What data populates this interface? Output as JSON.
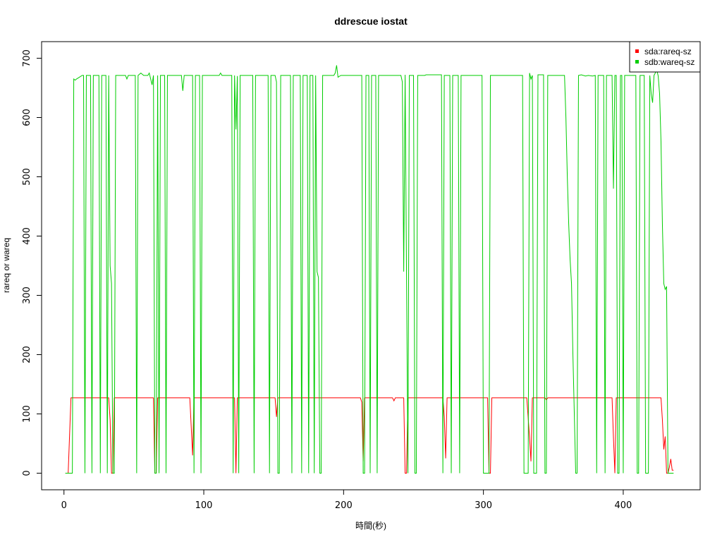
{
  "chart_data": {
    "type": "line",
    "title": "ddrescue iostat",
    "xlabel": "時間(秒)",
    "ylabel": "rareq or wareq",
    "xlim": [
      -16,
      455
    ],
    "ylim": [
      -28,
      728
    ],
    "xticks": [
      0,
      100,
      200,
      300,
      400
    ],
    "yticks": [
      0,
      100,
      200,
      300,
      400,
      500,
      600,
      700
    ],
    "legend": "top-right",
    "grid": false,
    "series": [
      {
        "name": "sda:rareq-sz",
        "color": "#ff0000",
        "points": [
          [
            1,
            0
          ],
          [
            3,
            0
          ],
          [
            5,
            127
          ],
          [
            32,
            127
          ],
          [
            33,
            90
          ],
          [
            34,
            0
          ],
          [
            35,
            0
          ],
          [
            36,
            127
          ],
          [
            64,
            127
          ],
          [
            65,
            0
          ],
          [
            66,
            0
          ],
          [
            67,
            127
          ],
          [
            90,
            127
          ],
          [
            92,
            30
          ],
          [
            93,
            127
          ],
          [
            122,
            127
          ],
          [
            123,
            0
          ],
          [
            124,
            127
          ],
          [
            151,
            127
          ],
          [
            152,
            95
          ],
          [
            153,
            127
          ],
          [
            212,
            127
          ],
          [
            213,
            120
          ],
          [
            214,
            20
          ],
          [
            215,
            127
          ],
          [
            235,
            127
          ],
          [
            236,
            122
          ],
          [
            237,
            127
          ],
          [
            243,
            127
          ],
          [
            244,
            0
          ],
          [
            245,
            0
          ],
          [
            246,
            127
          ],
          [
            271,
            127
          ],
          [
            272,
            95
          ],
          [
            273,
            25
          ],
          [
            274,
            127
          ],
          [
            303,
            127
          ],
          [
            304,
            0
          ],
          [
            305,
            0
          ],
          [
            306,
            127
          ],
          [
            331,
            127
          ],
          [
            333,
            60
          ],
          [
            334,
            20
          ],
          [
            335,
            127
          ],
          [
            344,
            127
          ],
          [
            345,
            124
          ],
          [
            346,
            127
          ],
          [
            392,
            127
          ],
          [
            393,
            60
          ],
          [
            394,
            0
          ],
          [
            395,
            127
          ],
          [
            427,
            127
          ],
          [
            428,
            90
          ],
          [
            429,
            40
          ],
          [
            430,
            62
          ],
          [
            431,
            0
          ],
          [
            432,
            0
          ],
          [
            433,
            10
          ],
          [
            434,
            24
          ],
          [
            435,
            5
          ],
          [
            436,
            5
          ]
        ]
      },
      {
        "name": "sdb:wareq-sz",
        "color": "#00cd00",
        "points": [
          [
            1,
            0
          ],
          [
            3,
            0
          ],
          [
            4,
            0
          ],
          [
            5,
            0
          ],
          [
            6,
            0
          ],
          [
            7,
            665
          ],
          [
            8,
            663
          ],
          [
            9,
            665
          ],
          [
            11,
            668
          ],
          [
            13,
            671
          ],
          [
            14,
            671
          ],
          [
            15,
            0
          ],
          [
            16,
            671
          ],
          [
            19,
            671
          ],
          [
            20,
            0
          ],
          [
            21,
            671
          ],
          [
            25,
            671
          ],
          [
            26,
            0
          ],
          [
            27,
            671
          ],
          [
            30,
            671
          ],
          [
            31,
            0
          ],
          [
            32,
            671
          ],
          [
            33,
            350
          ],
          [
            34,
            320
          ],
          [
            35,
            0
          ],
          [
            36,
            0
          ],
          [
            37,
            671
          ],
          [
            44,
            671
          ],
          [
            45,
            665
          ],
          [
            46,
            671
          ],
          [
            51,
            671
          ],
          [
            52,
            0
          ],
          [
            53,
            671
          ],
          [
            55,
            675
          ],
          [
            57,
            671
          ],
          [
            60,
            671
          ],
          [
            61,
            675
          ],
          [
            62,
            665
          ],
          [
            63,
            655
          ],
          [
            64,
            671
          ],
          [
            65,
            0
          ],
          [
            66,
            0
          ],
          [
            67,
            671
          ],
          [
            68,
            0
          ],
          [
            69,
            671
          ],
          [
            72,
            671
          ],
          [
            73,
            0
          ],
          [
            74,
            671
          ],
          [
            84,
            671
          ],
          [
            85,
            645
          ],
          [
            86,
            671
          ],
          [
            92,
            671
          ],
          [
            93,
            0
          ],
          [
            94,
            671
          ],
          [
            97,
            671
          ],
          [
            98,
            0
          ],
          [
            99,
            671
          ],
          [
            110,
            671
          ],
          [
            111,
            671
          ],
          [
            112,
            675
          ],
          [
            113,
            671
          ],
          [
            120,
            671
          ],
          [
            121,
            0
          ],
          [
            122,
            671
          ],
          [
            123,
            580
          ],
          [
            124,
            670
          ],
          [
            125,
            0
          ],
          [
            126,
            671
          ],
          [
            135,
            671
          ],
          [
            136,
            0
          ],
          [
            137,
            671
          ],
          [
            146,
            671
          ],
          [
            147,
            0
          ],
          [
            148,
            671
          ],
          [
            151,
            671
          ],
          [
            152,
            660
          ],
          [
            153,
            0
          ],
          [
            154,
            0
          ],
          [
            155,
            671
          ],
          [
            162,
            671
          ],
          [
            163,
            0
          ],
          [
            164,
            671
          ],
          [
            169,
            671
          ],
          [
            170,
            0
          ],
          [
            171,
            671
          ],
          [
            174,
            671
          ],
          [
            175,
            0
          ],
          [
            176,
            671
          ],
          [
            178,
            671
          ],
          [
            179,
            0
          ],
          [
            180,
            671
          ],
          [
            181,
            340
          ],
          [
            182,
            330
          ],
          [
            183,
            0
          ],
          [
            184,
            0
          ],
          [
            185,
            671
          ],
          [
            193,
            671
          ],
          [
            194,
            675
          ],
          [
            195,
            688
          ],
          [
            196,
            668
          ],
          [
            198,
            671
          ],
          [
            213,
            671
          ],
          [
            214,
            0
          ],
          [
            215,
            0
          ],
          [
            216,
            671
          ],
          [
            218,
            671
          ],
          [
            219,
            0
          ],
          [
            220,
            671
          ],
          [
            223,
            671
          ],
          [
            224,
            0
          ],
          [
            225,
            671
          ],
          [
            240,
            671
          ],
          [
            241,
            671
          ],
          [
            242,
            660
          ],
          [
            243,
            340
          ],
          [
            244,
            672
          ],
          [
            246,
            0
          ],
          [
            247,
            671
          ],
          [
            250,
            671
          ],
          [
            251,
            0
          ],
          [
            252,
            0
          ],
          [
            253,
            671
          ],
          [
            258,
            671
          ],
          [
            259,
            672
          ],
          [
            270,
            672
          ],
          [
            271,
            0
          ],
          [
            272,
            671
          ],
          [
            276,
            671
          ],
          [
            277,
            0
          ],
          [
            278,
            671
          ],
          [
            282,
            671
          ],
          [
            283,
            0
          ],
          [
            284,
            671
          ],
          [
            299,
            671
          ],
          [
            300,
            0
          ],
          [
            301,
            0
          ],
          [
            302,
            0
          ],
          [
            303,
            0
          ],
          [
            304,
            0
          ],
          [
            305,
            671
          ],
          [
            328,
            671
          ],
          [
            329,
            0
          ],
          [
            330,
            0
          ],
          [
            331,
            0
          ],
          [
            332,
            0
          ],
          [
            333,
            675
          ],
          [
            334,
            665
          ],
          [
            335,
            671
          ],
          [
            336,
            0
          ],
          [
            337,
            0
          ],
          [
            338,
            0
          ],
          [
            339,
            672
          ],
          [
            343,
            672
          ],
          [
            344,
            0
          ],
          [
            345,
            0
          ],
          [
            346,
            671
          ],
          [
            358,
            671
          ],
          [
            359,
            600
          ],
          [
            360,
            500
          ],
          [
            361,
            420
          ],
          [
            362,
            360
          ],
          [
            363,
            320
          ],
          [
            364,
            200
          ],
          [
            365,
            100
          ],
          [
            366,
            0
          ],
          [
            367,
            0
          ],
          [
            368,
            671
          ],
          [
            370,
            672
          ],
          [
            373,
            670
          ],
          [
            375,
            671
          ],
          [
            378,
            670
          ],
          [
            380,
            671
          ],
          [
            381,
            0
          ],
          [
            382,
            671
          ],
          [
            386,
            671
          ],
          [
            387,
            0
          ],
          [
            388,
            671
          ],
          [
            390,
            671
          ],
          [
            392,
            671
          ],
          [
            393,
            480
          ],
          [
            394,
            671
          ],
          [
            395,
            671
          ],
          [
            396,
            0
          ],
          [
            397,
            0
          ],
          [
            398,
            671
          ],
          [
            399,
            671
          ],
          [
            400,
            0
          ],
          [
            401,
            671
          ],
          [
            409,
            671
          ],
          [
            410,
            0
          ],
          [
            411,
            0
          ],
          [
            412,
            671
          ],
          [
            415,
            671
          ],
          [
            416,
            0
          ],
          [
            417,
            0
          ],
          [
            418,
            0
          ],
          [
            419,
            671
          ],
          [
            420,
            640
          ],
          [
            421,
            625
          ],
          [
            422,
            671
          ],
          [
            424,
            680
          ],
          [
            425,
            670
          ],
          [
            426,
            640
          ],
          [
            427,
            560
          ],
          [
            428,
            420
          ],
          [
            429,
            320
          ],
          [
            430,
            310
          ],
          [
            431,
            315
          ],
          [
            432,
            0
          ],
          [
            433,
            0
          ],
          [
            434,
            0
          ],
          [
            435,
            0
          ],
          [
            436,
            0
          ]
        ]
      }
    ]
  }
}
